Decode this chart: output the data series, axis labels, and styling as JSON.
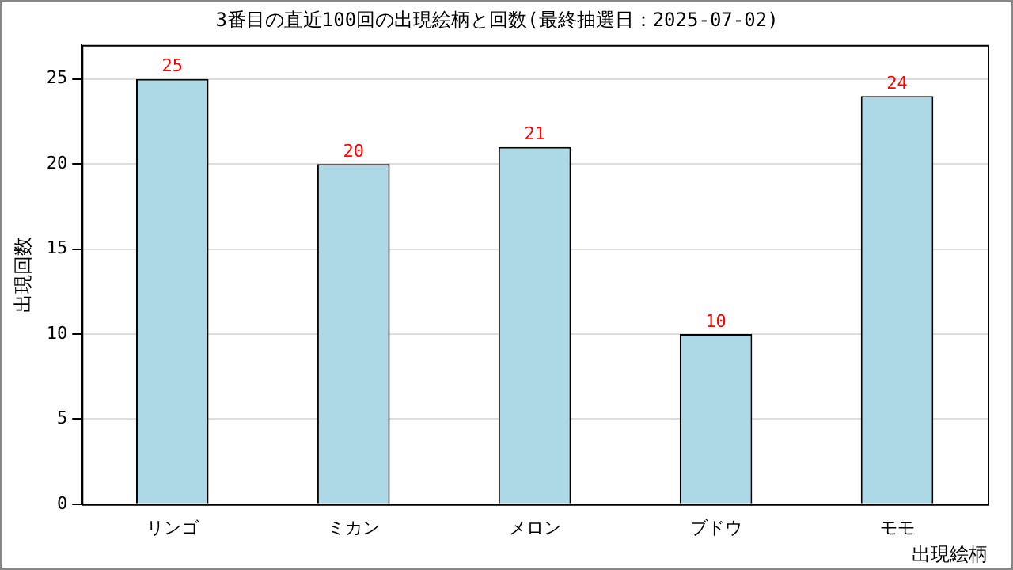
{
  "chart_data": {
    "type": "bar",
    "title": "3番目の直近100回の出現絵柄と回数(最終抽選日：2025-07-02)",
    "xlabel": "出現絵柄",
    "ylabel": "出現回数",
    "categories": [
      "リンゴ",
      "ミカン",
      "メロン",
      "ブドウ",
      "モモ"
    ],
    "values": [
      25,
      20,
      21,
      10,
      24
    ],
    "color": "#add8e6",
    "ylim": [
      0,
      27
    ],
    "yticks": [
      0,
      5,
      10,
      15,
      20,
      25
    ],
    "grid": "y",
    "legend": false,
    "data_labels": true
  }
}
